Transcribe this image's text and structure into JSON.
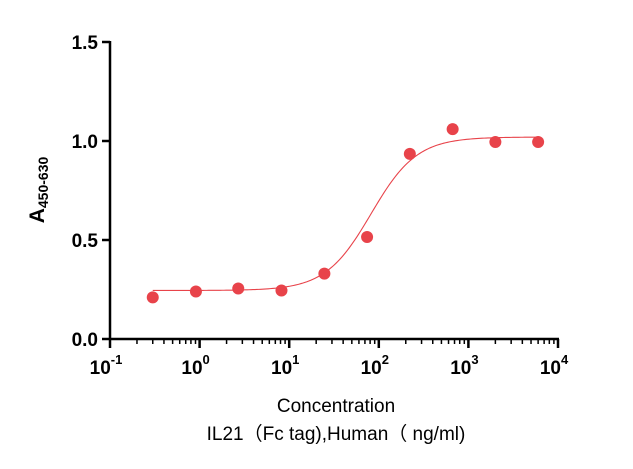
{
  "chart_data": {
    "type": "scatter",
    "xlabel_lines": [
      "Concentration",
      "IL21（Fc tag),Human（ ng/ml)"
    ],
    "ylabel": {
      "main": "A",
      "sub": "450-630"
    },
    "x_scale": "log",
    "xlim": [
      0.1,
      10000
    ],
    "x_ticks": [
      {
        "base": "10",
        "exp": "-1"
      },
      {
        "base": "10",
        "exp": "0"
      },
      {
        "base": "10",
        "exp": "1"
      },
      {
        "base": "10",
        "exp": "2"
      },
      {
        "base": "10",
        "exp": "3"
      },
      {
        "base": "10",
        "exp": "4"
      }
    ],
    "ylim": [
      0,
      1.5
    ],
    "y_ticks": [
      "0.0",
      "0.5",
      "1.0",
      "1.5"
    ],
    "grid": false,
    "series": [
      {
        "x": [
          0.3,
          0.91,
          2.7,
          8.2,
          24.7,
          74,
          222,
          667,
          2000,
          6000
        ],
        "y": [
          0.21,
          0.24,
          0.255,
          0.245,
          0.33,
          0.515,
          0.935,
          1.06,
          0.995,
          0.995
        ],
        "color": "#e8434a",
        "fit": {
          "model": "4PL",
          "bottom": 0.245,
          "top": 1.02,
          "ec50": 82,
          "hill": 1.7,
          "color": "#e8434a"
        }
      }
    ]
  }
}
